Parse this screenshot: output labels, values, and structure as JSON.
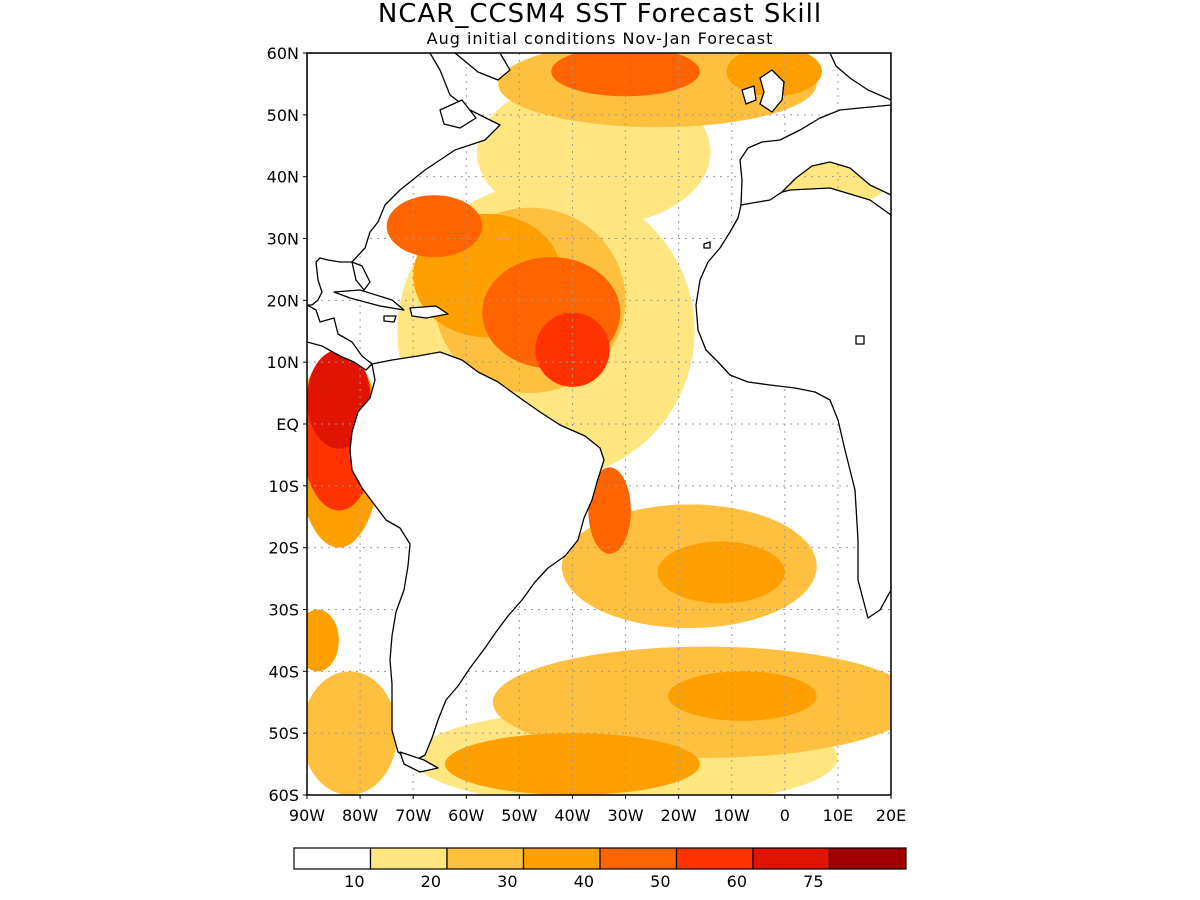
{
  "map": {
    "title": "NCAR_CCSM4 SST Forecast Skill",
    "subtitle": "Aug initial conditions  Nov-Jan Forecast",
    "lon_range": [
      -90,
      20
    ],
    "lat_range": [
      -60,
      60
    ],
    "grid": true,
    "lat_ticks": [
      {
        "value": 60,
        "label": "60N"
      },
      {
        "value": 50,
        "label": "50N"
      },
      {
        "value": 40,
        "label": "40N"
      },
      {
        "value": 30,
        "label": "30N"
      },
      {
        "value": 20,
        "label": "20N"
      },
      {
        "value": 10,
        "label": "10N"
      },
      {
        "value": 0,
        "label": "EQ"
      },
      {
        "value": -10,
        "label": "10S"
      },
      {
        "value": -20,
        "label": "20S"
      },
      {
        "value": -30,
        "label": "30S"
      },
      {
        "value": -40,
        "label": "40S"
      },
      {
        "value": -50,
        "label": "50S"
      },
      {
        "value": -60,
        "label": "60S"
      }
    ],
    "lon_ticks": [
      {
        "value": -90,
        "label": "90W"
      },
      {
        "value": -80,
        "label": "80W"
      },
      {
        "value": -70,
        "label": "70W"
      },
      {
        "value": -60,
        "label": "60W"
      },
      {
        "value": -50,
        "label": "50W"
      },
      {
        "value": -40,
        "label": "40W"
      },
      {
        "value": -30,
        "label": "30W"
      },
      {
        "value": -20,
        "label": "20W"
      },
      {
        "value": -10,
        "label": "10W"
      },
      {
        "value": 0,
        "label": "0"
      },
      {
        "value": 10,
        "label": "10E"
      },
      {
        "value": 20,
        "label": "20E"
      }
    ],
    "colorbar": {
      "colors": [
        "#ffffff",
        "#ffe680",
        "#ffc040",
        "#ffa000",
        "#ff6400",
        "#ff3200",
        "#e01400",
        "#a00000"
      ],
      "labels": [
        "10",
        "20",
        "30",
        "40",
        "50",
        "60",
        "75"
      ]
    },
    "skill_regions": [
      {
        "lon": -56,
        "lat": 24,
        "rx": 14,
        "ry": 10,
        "level": 3
      },
      {
        "lon": -44,
        "lat": 18,
        "rx": 13,
        "ry": 9,
        "level": 4
      },
      {
        "lon": -40,
        "lat": 12,
        "rx": 7,
        "ry": 6,
        "level": 5
      },
      {
        "lon": -66,
        "lat": 32,
        "rx": 9,
        "ry": 5,
        "level": 4
      },
      {
        "lon": -48,
        "lat": 20,
        "rx": 18,
        "ry": 15,
        "level": 2
      },
      {
        "lon": -45,
        "lat": 15,
        "rx": 28,
        "ry": 24,
        "level": 1
      },
      {
        "lon": -36,
        "lat": 44,
        "rx": 22,
        "ry": 12,
        "level": 1
      },
      {
        "lon": -30,
        "lat": 57,
        "rx": 14,
        "ry": 4,
        "level": 4
      },
      {
        "lon": -24,
        "lat": 55,
        "rx": 30,
        "ry": 7,
        "level": 2
      },
      {
        "lon": -84,
        "lat": 4,
        "rx": 6,
        "ry": 8,
        "level": 6
      },
      {
        "lon": -84,
        "lat": -2,
        "rx": 7,
        "ry": 12,
        "level": 5
      },
      {
        "lon": -84,
        "lat": -4,
        "rx": 8,
        "ry": 16,
        "level": 3
      },
      {
        "lon": -33,
        "lat": -14,
        "rx": 4,
        "ry": 7,
        "level": 4
      },
      {
        "lon": -18,
        "lat": -23,
        "rx": 24,
        "ry": 10,
        "level": 2
      },
      {
        "lon": -12,
        "lat": -24,
        "rx": 12,
        "ry": 5,
        "level": 3
      },
      {
        "lon": -15,
        "lat": -45,
        "rx": 40,
        "ry": 9,
        "level": 2
      },
      {
        "lon": -8,
        "lat": -44,
        "rx": 14,
        "ry": 4,
        "level": 3
      },
      {
        "lon": -40,
        "lat": -55,
        "rx": 24,
        "ry": 5,
        "level": 3
      },
      {
        "lon": -30,
        "lat": -54,
        "rx": 40,
        "ry": 8,
        "level": 1
      },
      {
        "lon": -82,
        "lat": -50,
        "rx": 9,
        "ry": 10,
        "level": 2
      },
      {
        "lon": -88,
        "lat": -35,
        "rx": 4,
        "ry": 5,
        "level": 3
      },
      {
        "lon": 8,
        "lat": 40,
        "rx": 12,
        "ry": 5,
        "level": 1
      },
      {
        "lon": -2,
        "lat": 57,
        "rx": 9,
        "ry": 4,
        "level": 3
      }
    ]
  }
}
